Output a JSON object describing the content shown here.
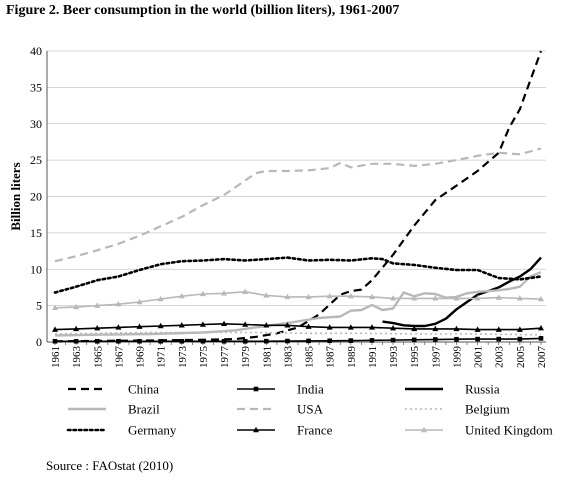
{
  "figure_title": "Figure 2. Beer consumption in the world (billion liters), 1961-2007",
  "source_text": "Source : FAOstat (2010)",
  "chart_data": {
    "type": "line",
    "title": "Figure 2. Beer consumption in the world (billion liters), 1961-2007",
    "ylabel": "Billion liters",
    "xlabel": "",
    "ylim": [
      0,
      40
    ],
    "yticks": [
      0,
      5,
      10,
      15,
      20,
      25,
      30,
      35,
      40
    ],
    "xlim": [
      1961,
      2007
    ],
    "xtick_labels": [
      "1961",
      "1963",
      "1965",
      "1967",
      "1969",
      "1971",
      "1973",
      "1975",
      "1977",
      "1979",
      "1981",
      "1983",
      "1985",
      "1987",
      "1989",
      "1991",
      "1993",
      "1995",
      "1997",
      "1999",
      "2001",
      "2003",
      "2005",
      "2007"
    ],
    "grid": "horizontal",
    "legend_position": "bottom",
    "series": [
      {
        "name": "China",
        "color": "#000000",
        "style": "dashed",
        "marker": "none",
        "points": [
          [
            1961,
            0.1
          ],
          [
            1965,
            0.15
          ],
          [
            1970,
            0.2
          ],
          [
            1975,
            0.3
          ],
          [
            1978,
            0.4
          ],
          [
            1980,
            0.7
          ],
          [
            1982,
            1.2
          ],
          [
            1984,
            2.0
          ],
          [
            1986,
            3.8
          ],
          [
            1988,
            6.5
          ],
          [
            1989,
            7.0
          ],
          [
            1990,
            7.2
          ],
          [
            1991,
            8.5
          ],
          [
            1993,
            12.0
          ],
          [
            1995,
            16.0
          ],
          [
            1997,
            19.5
          ],
          [
            1999,
            21.5
          ],
          [
            2001,
            23.5
          ],
          [
            2003,
            26.0
          ],
          [
            2004,
            29.5
          ],
          [
            2005,
            32.0
          ],
          [
            2006,
            36.0
          ],
          [
            2007,
            40.0
          ]
        ]
      },
      {
        "name": "India",
        "color": "#000000",
        "style": "solid",
        "marker": "square",
        "points": [
          [
            1961,
            0.1
          ],
          [
            1965,
            0.1
          ],
          [
            1970,
            0.1
          ],
          [
            1975,
            0.1
          ],
          [
            1980,
            0.1
          ],
          [
            1985,
            0.15
          ],
          [
            1990,
            0.2
          ],
          [
            1995,
            0.3
          ],
          [
            2000,
            0.4
          ],
          [
            2005,
            0.4
          ],
          [
            2007,
            0.5
          ]
        ]
      },
      {
        "name": "Russia",
        "color": "#000000",
        "style": "solid-bold",
        "marker": "none",
        "points": [
          [
            1992,
            2.8
          ],
          [
            1993,
            2.6
          ],
          [
            1994,
            2.3
          ],
          [
            1995,
            2.2
          ],
          [
            1996,
            2.2
          ],
          [
            1997,
            2.5
          ],
          [
            1998,
            3.2
          ],
          [
            1999,
            4.5
          ],
          [
            2000,
            5.5
          ],
          [
            2001,
            6.5
          ],
          [
            2002,
            7.0
          ],
          [
            2003,
            7.5
          ],
          [
            2004,
            8.3
          ],
          [
            2005,
            9.0
          ],
          [
            2006,
            10.0
          ],
          [
            2007,
            11.6
          ]
        ]
      },
      {
        "name": "Brazil",
        "color": "#b8b8b8",
        "style": "solid-bold",
        "marker": "none",
        "points": [
          [
            1961,
            0.9
          ],
          [
            1965,
            1.0
          ],
          [
            1970,
            1.1
          ],
          [
            1975,
            1.3
          ],
          [
            1978,
            1.6
          ],
          [
            1980,
            2.0
          ],
          [
            1983,
            2.6
          ],
          [
            1986,
            3.3
          ],
          [
            1988,
            3.5
          ],
          [
            1989,
            4.3
          ],
          [
            1990,
            4.4
          ],
          [
            1991,
            5.1
          ],
          [
            1992,
            4.4
          ],
          [
            1993,
            4.6
          ],
          [
            1994,
            6.8
          ],
          [
            1995,
            6.3
          ],
          [
            1996,
            6.7
          ],
          [
            1997,
            6.6
          ],
          [
            1998,
            6.1
          ],
          [
            1999,
            6.2
          ],
          [
            2000,
            6.7
          ],
          [
            2001,
            6.9
          ],
          [
            2002,
            7.0
          ],
          [
            2003,
            7.1
          ],
          [
            2004,
            7.3
          ],
          [
            2005,
            7.6
          ],
          [
            2006,
            9.0
          ],
          [
            2007,
            9.6
          ]
        ]
      },
      {
        "name": "USA",
        "color": "#b8b8b8",
        "style": "dashed",
        "marker": "none",
        "points": [
          [
            1961,
            11.1
          ],
          [
            1963,
            11.8
          ],
          [
            1965,
            12.6
          ],
          [
            1967,
            13.5
          ],
          [
            1969,
            14.6
          ],
          [
            1971,
            15.9
          ],
          [
            1973,
            17.2
          ],
          [
            1975,
            18.8
          ],
          [
            1977,
            20.2
          ],
          [
            1979,
            22.2
          ],
          [
            1980,
            23.2
          ],
          [
            1981,
            23.5
          ],
          [
            1983,
            23.5
          ],
          [
            1985,
            23.6
          ],
          [
            1987,
            23.9
          ],
          [
            1988,
            24.6
          ],
          [
            1989,
            24.0
          ],
          [
            1991,
            24.5
          ],
          [
            1993,
            24.5
          ],
          [
            1995,
            24.2
          ],
          [
            1997,
            24.5
          ],
          [
            1999,
            25.0
          ],
          [
            2001,
            25.6
          ],
          [
            2003,
            26.0
          ],
          [
            2005,
            25.8
          ],
          [
            2007,
            26.6
          ]
        ]
      },
      {
        "name": "Belgium",
        "color": "#b8b8b8",
        "style": "dotted",
        "marker": "none",
        "points": [
          [
            1961,
            1.1
          ],
          [
            1965,
            1.2
          ],
          [
            1970,
            1.3
          ],
          [
            1975,
            1.3
          ],
          [
            1980,
            1.3
          ],
          [
            1985,
            1.2
          ],
          [
            1990,
            1.2
          ],
          [
            1995,
            1.1
          ],
          [
            2000,
            1.1
          ],
          [
            2007,
            1.0
          ]
        ]
      },
      {
        "name": "Germany",
        "color": "#000000",
        "style": "dotted-bold",
        "marker": "none",
        "points": [
          [
            1961,
            6.8
          ],
          [
            1963,
            7.6
          ],
          [
            1965,
            8.5
          ],
          [
            1967,
            9.0
          ],
          [
            1969,
            9.9
          ],
          [
            1971,
            10.7
          ],
          [
            1973,
            11.1
          ],
          [
            1975,
            11.2
          ],
          [
            1977,
            11.4
          ],
          [
            1979,
            11.2
          ],
          [
            1981,
            11.4
          ],
          [
            1983,
            11.6
          ],
          [
            1985,
            11.2
          ],
          [
            1987,
            11.3
          ],
          [
            1989,
            11.2
          ],
          [
            1991,
            11.5
          ],
          [
            1992,
            11.4
          ],
          [
            1993,
            10.8
          ],
          [
            1995,
            10.6
          ],
          [
            1997,
            10.2
          ],
          [
            1999,
            9.9
          ],
          [
            2001,
            9.9
          ],
          [
            2003,
            8.8
          ],
          [
            2005,
            8.6
          ],
          [
            2007,
            9.0
          ]
        ]
      },
      {
        "name": "France",
        "color": "#000000",
        "style": "solid",
        "marker": "triangle",
        "points": [
          [
            1961,
            1.7
          ],
          [
            1963,
            1.8
          ],
          [
            1965,
            1.9
          ],
          [
            1967,
            2.0
          ],
          [
            1969,
            2.1
          ],
          [
            1971,
            2.2
          ],
          [
            1973,
            2.3
          ],
          [
            1975,
            2.4
          ],
          [
            1977,
            2.5
          ],
          [
            1979,
            2.4
          ],
          [
            1981,
            2.3
          ],
          [
            1983,
            2.3
          ],
          [
            1985,
            2.1
          ],
          [
            1987,
            2.0
          ],
          [
            1989,
            2.0
          ],
          [
            1991,
            2.0
          ],
          [
            1993,
            1.9
          ],
          [
            1995,
            1.8
          ],
          [
            1997,
            1.8
          ],
          [
            1999,
            1.8
          ],
          [
            2001,
            1.7
          ],
          [
            2003,
            1.7
          ],
          [
            2005,
            1.7
          ],
          [
            2007,
            1.9
          ]
        ]
      },
      {
        "name": "United Kingdom",
        "color": "#b8b8b8",
        "style": "solid",
        "marker": "triangle",
        "points": [
          [
            1961,
            4.7
          ],
          [
            1963,
            4.8
          ],
          [
            1965,
            5.0
          ],
          [
            1967,
            5.2
          ],
          [
            1969,
            5.5
          ],
          [
            1971,
            5.9
          ],
          [
            1973,
            6.3
          ],
          [
            1975,
            6.6
          ],
          [
            1977,
            6.7
          ],
          [
            1979,
            6.9
          ],
          [
            1981,
            6.4
          ],
          [
            1983,
            6.2
          ],
          [
            1985,
            6.2
          ],
          [
            1987,
            6.3
          ],
          [
            1989,
            6.3
          ],
          [
            1991,
            6.2
          ],
          [
            1993,
            6.0
          ],
          [
            1995,
            6.0
          ],
          [
            1997,
            6.0
          ],
          [
            1999,
            6.0
          ],
          [
            2001,
            6.0
          ],
          [
            2003,
            6.1
          ],
          [
            2005,
            6.0
          ],
          [
            2007,
            5.9
          ]
        ]
      }
    ]
  }
}
